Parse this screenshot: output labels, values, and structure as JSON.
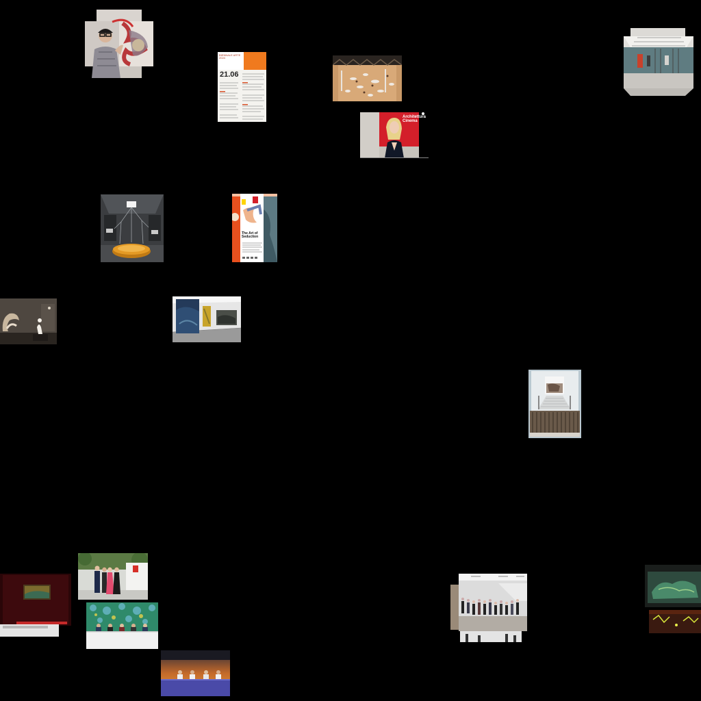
{
  "gallery": {
    "background": "#000000",
    "thumbnails": [
      {
        "id": "woman-with-painting",
        "subject": "woman in glasses beside abstract painting"
      },
      {
        "id": "biennale-programme-poster",
        "subject": "printed programme poster",
        "text_big": "21.06",
        "text_header": "BIENNALE ARTE 2024",
        "accent": "#f07a1e"
      },
      {
        "id": "pavilion-floor-installation",
        "subject": "overhead view of installation on sandy floor"
      },
      {
        "id": "gallery-hall-interior",
        "subject": "grey-walled exhibition hall"
      },
      {
        "id": "woman-red-backdrop",
        "subject": "blonde woman in front of red banner",
        "banner_text": "Architettura Cinema",
        "accent": "#d31f2a"
      },
      {
        "id": "golden-disc-installation",
        "subject": "golden disc with hanging wires"
      },
      {
        "id": "art-of-seduction-poster",
        "subject": "orange event poster",
        "title_text": "The Art of Seduction",
        "accent": "#e8501e"
      },
      {
        "id": "sculpture-room",
        "subject": "white sculptures in dim room"
      },
      {
        "id": "paintings-white-gallery",
        "subject": "three paintings on white gallery walls"
      },
      {
        "id": "staircase-installation",
        "subject": "stairway with sculptural mass"
      },
      {
        "id": "red-stage-screen",
        "subject": "screen on dark red stage"
      },
      {
        "id": "group-in-garden",
        "subject": "group in formal dress outside pavilion",
        "accent": "#d63028"
      },
      {
        "id": "press-conference-green",
        "subject": "panel seated at table before green backdrop"
      },
      {
        "id": "panel-sunset-stage",
        "subject": "panel at table under sunset projection"
      },
      {
        "id": "crowd-gallery",
        "subject": "crowd inside white gallery"
      },
      {
        "id": "dark-map-installation",
        "subject": "illuminated map projection in dark room"
      }
    ]
  }
}
